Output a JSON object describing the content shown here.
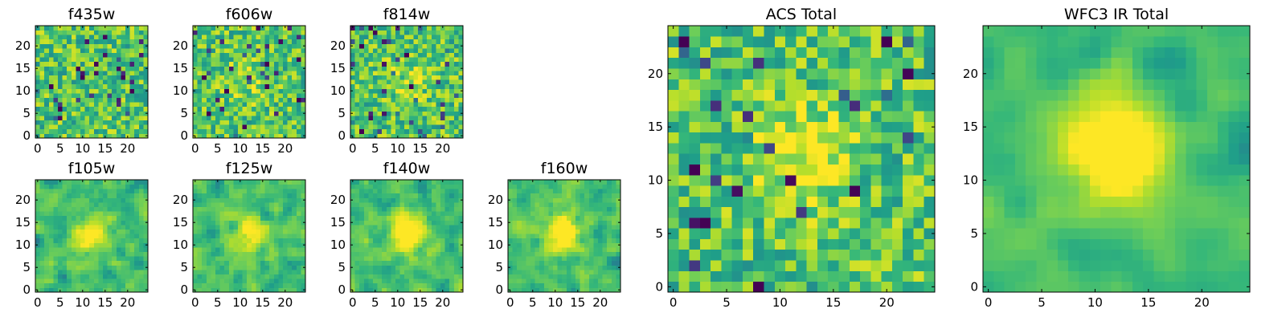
{
  "chart_data": [
    {
      "type": "heatmap",
      "title": "f435w",
      "colormap": "viridis",
      "grid_size": [
        25,
        25
      ],
      "vmin": 0,
      "vmax": 1,
      "xlim": [
        0,
        25
      ],
      "ylim": [
        0,
        25
      ],
      "xticks": [
        0,
        5,
        10,
        15,
        20
      ],
      "yticks": [
        0,
        5,
        10,
        15,
        20
      ],
      "grid": false,
      "signal_strength": 0.0,
      "blur": 0,
      "values": []
    },
    {
      "type": "heatmap",
      "title": "f606w",
      "colormap": "viridis",
      "grid_size": [
        25,
        25
      ],
      "vmin": 0,
      "vmax": 1,
      "xlim": [
        0,
        25
      ],
      "ylim": [
        0,
        25
      ],
      "xticks": [
        0,
        5,
        10,
        15,
        20
      ],
      "yticks": [
        0,
        5,
        10,
        15,
        20
      ],
      "grid": false,
      "signal_strength": 0.15,
      "blur": 0,
      "values": []
    },
    {
      "type": "heatmap",
      "title": "f814w",
      "colormap": "viridis",
      "grid_size": [
        25,
        25
      ],
      "vmin": 0,
      "vmax": 1,
      "xlim": [
        0,
        25
      ],
      "ylim": [
        0,
        25
      ],
      "xticks": [
        0,
        5,
        10,
        15,
        20
      ],
      "yticks": [
        0,
        5,
        10,
        15,
        20
      ],
      "grid": false,
      "signal_strength": 0.18,
      "blur": 0,
      "values": []
    },
    {
      "type": "heatmap",
      "title": "f105w",
      "colormap": "viridis",
      "grid_size": [
        25,
        25
      ],
      "vmin": 0,
      "vmax": 1,
      "xlim": [
        0,
        25
      ],
      "ylim": [
        0,
        25
      ],
      "xticks": [
        0,
        5,
        10,
        15,
        20
      ],
      "yticks": [
        0,
        5,
        10,
        15,
        20
      ],
      "grid": false,
      "signal_strength": 0.3,
      "blur": 1,
      "values": []
    },
    {
      "type": "heatmap",
      "title": "f125w",
      "colormap": "viridis",
      "grid_size": [
        25,
        25
      ],
      "vmin": 0,
      "vmax": 1,
      "xlim": [
        0,
        25
      ],
      "ylim": [
        0,
        25
      ],
      "xticks": [
        0,
        5,
        10,
        15,
        20
      ],
      "yticks": [
        0,
        5,
        10,
        15,
        20
      ],
      "grid": false,
      "signal_strength": 0.35,
      "blur": 1,
      "values": []
    },
    {
      "type": "heatmap",
      "title": "f140w",
      "colormap": "viridis",
      "grid_size": [
        25,
        25
      ],
      "vmin": 0,
      "vmax": 1,
      "xlim": [
        0,
        25
      ],
      "ylim": [
        0,
        25
      ],
      "xticks": [
        0,
        5,
        10,
        15,
        20
      ],
      "yticks": [
        0,
        5,
        10,
        15,
        20
      ],
      "grid": false,
      "signal_strength": 0.4,
      "blur": 1,
      "values": []
    },
    {
      "type": "heatmap",
      "title": "f160w",
      "colormap": "viridis",
      "grid_size": [
        25,
        25
      ],
      "vmin": 0,
      "vmax": 1,
      "xlim": [
        0,
        25
      ],
      "ylim": [
        0,
        25
      ],
      "xticks": [
        0,
        5,
        10,
        15,
        20
      ],
      "yticks": [
        0,
        5,
        10,
        15,
        20
      ],
      "grid": false,
      "signal_strength": 0.45,
      "blur": 1,
      "values": []
    },
    {
      "type": "heatmap",
      "title": "ACS Total",
      "colormap": "viridis",
      "grid_size": [
        25,
        25
      ],
      "vmin": 0,
      "vmax": 1,
      "xlim": [
        0,
        25
      ],
      "ylim": [
        0,
        25
      ],
      "xticks": [
        0,
        5,
        10,
        15,
        20
      ],
      "yticks": [
        0,
        5,
        10,
        15,
        20
      ],
      "grid": false,
      "signal_strength": 0.3,
      "blur": 0,
      "values": []
    },
    {
      "type": "heatmap",
      "title": "WFC3 IR Total",
      "colormap": "viridis",
      "grid_size": [
        25,
        25
      ],
      "vmin": 0,
      "vmax": 1,
      "xlim": [
        0,
        25
      ],
      "ylim": [
        0,
        25
      ],
      "xticks": [
        0,
        5,
        10,
        15,
        20
      ],
      "yticks": [
        0,
        5,
        10,
        15,
        20
      ],
      "grid": false,
      "signal_strength": 0.55,
      "blur": 2,
      "values": []
    }
  ]
}
